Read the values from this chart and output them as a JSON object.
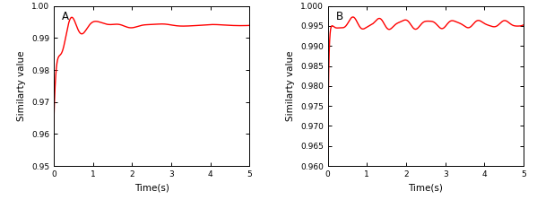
{
  "panel_A": {
    "label": "A",
    "xlabel": "Time(s)",
    "ylabel": "Similarty value",
    "xlim": [
      0,
      5
    ],
    "ylim": [
      0.95,
      1.0
    ],
    "yticks": [
      0.95,
      0.96,
      0.97,
      0.98,
      0.99,
      1.0
    ],
    "xticks": [
      0,
      1,
      2,
      3,
      4,
      5
    ],
    "line_color": "#ff0000",
    "line_width": 1.0
  },
  "panel_B": {
    "label": "B",
    "xlabel": "Time(s)",
    "ylabel": "Similarty value",
    "xlim": [
      0,
      5
    ],
    "ylim": [
      0.96,
      1.0
    ],
    "yticks": [
      0.96,
      0.965,
      0.97,
      0.975,
      0.98,
      0.985,
      0.99,
      0.995,
      1.0
    ],
    "xticks": [
      0,
      1,
      2,
      3,
      4,
      5
    ],
    "line_color": "#ff0000",
    "line_width": 1.0
  },
  "background_color": "#ffffff",
  "font_size": 7.5,
  "label_font_size": 8.5
}
